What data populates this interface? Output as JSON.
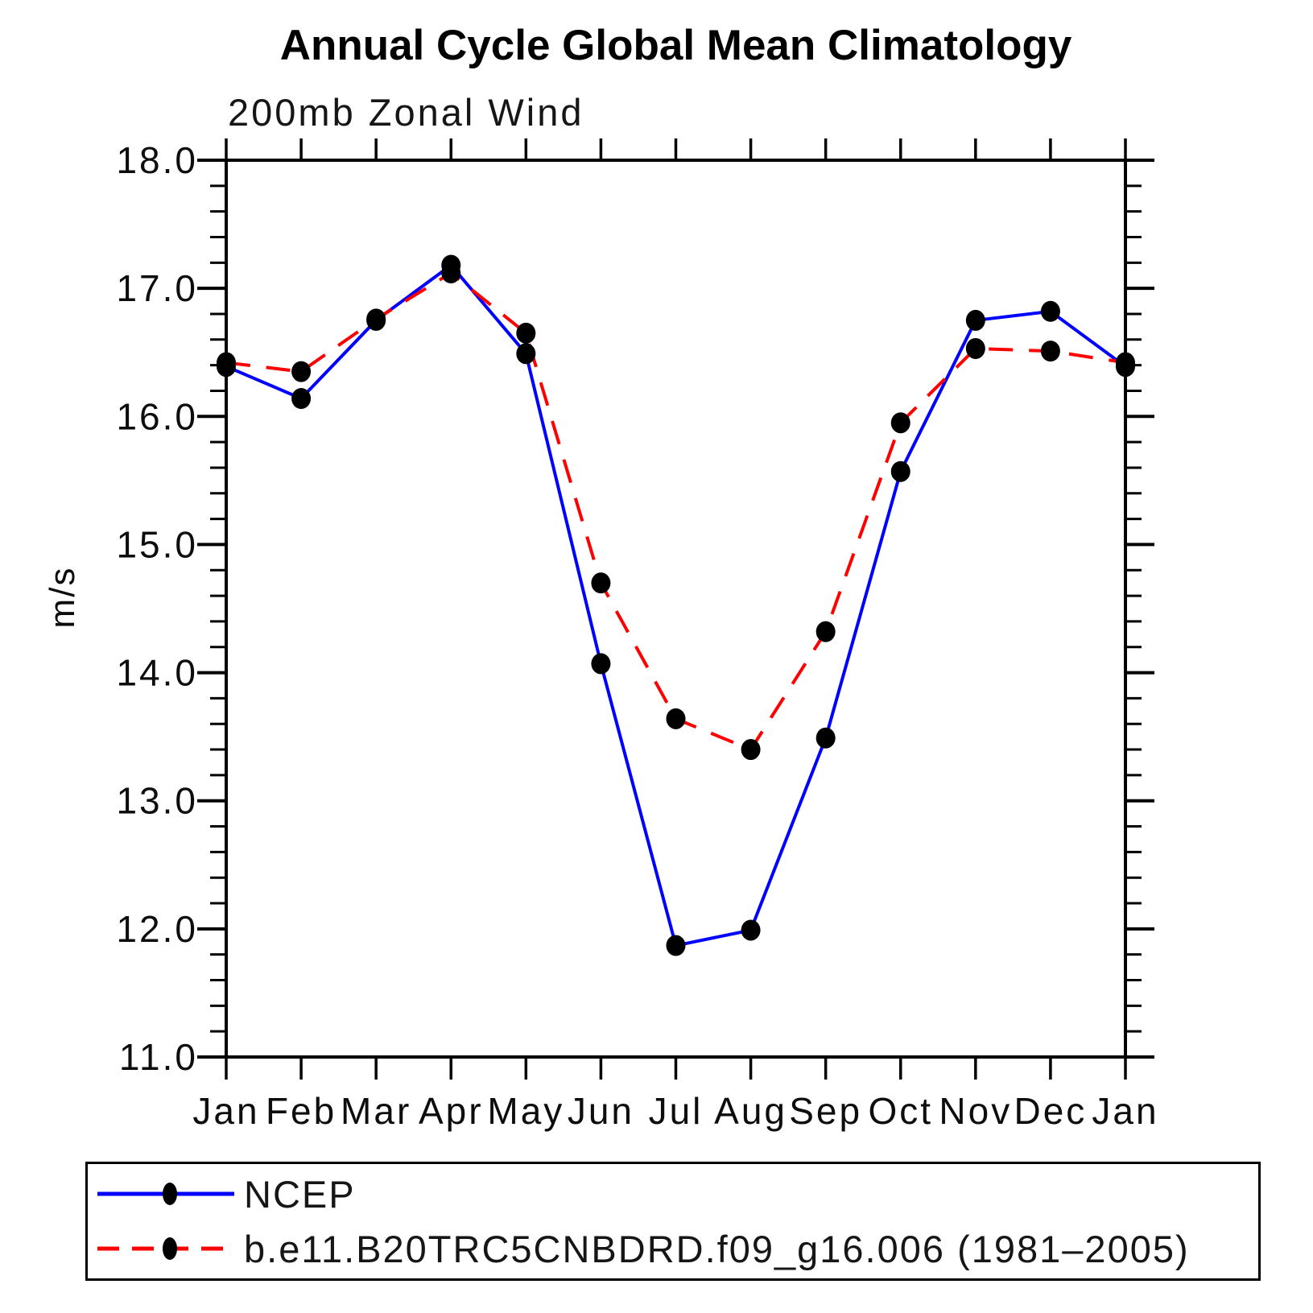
{
  "chart_data": {
    "type": "line",
    "title": "Annual Cycle Global Mean Climatology",
    "subtitle": "200mb Zonal Wind",
    "ylabel": "m/s",
    "xlabel": "",
    "ylim": [
      11.0,
      18.0
    ],
    "y_major_step": 1.0,
    "y_minor_step": 0.2,
    "y_major_ticks": [
      18.0,
      17.0,
      16.0,
      15.0,
      14.0,
      13.0,
      12.0,
      11.0
    ],
    "y_tick_labels": [
      "18.0",
      "17.0",
      "16.0",
      "15.0",
      "14.0",
      "13.0",
      "12.0",
      "11.0"
    ],
    "x_tick_labels": [
      "Jan",
      "Feb",
      "Mar",
      "Apr",
      "May",
      "Jun",
      "Jul",
      "Aug",
      "Sep",
      "Oct",
      "Nov",
      "Dec",
      "Jan"
    ],
    "grid": false,
    "legend_position": "bottom-left-box",
    "axis_color": "#000000",
    "marker": "filled-circle",
    "marker_color": "#000000",
    "series": [
      {
        "name": "NCEP",
        "color": "#0000ff",
        "line_style": "solid",
        "marker_color": "#000000",
        "values": [
          16.39,
          16.14,
          16.75,
          17.18,
          16.49,
          14.07,
          11.87,
          11.99,
          13.49,
          15.57,
          16.75,
          16.82,
          16.39
        ]
      },
      {
        "name": "b.e11.B20TRC5CNBDRD.f09_g16.006 (1981–2005)",
        "color": "#ff0000",
        "line_style": "dashed",
        "marker_color": "#000000",
        "values": [
          16.42,
          16.35,
          16.76,
          17.12,
          16.65,
          14.7,
          13.64,
          13.4,
          14.32,
          15.95,
          16.53,
          16.51,
          16.42
        ]
      }
    ]
  }
}
